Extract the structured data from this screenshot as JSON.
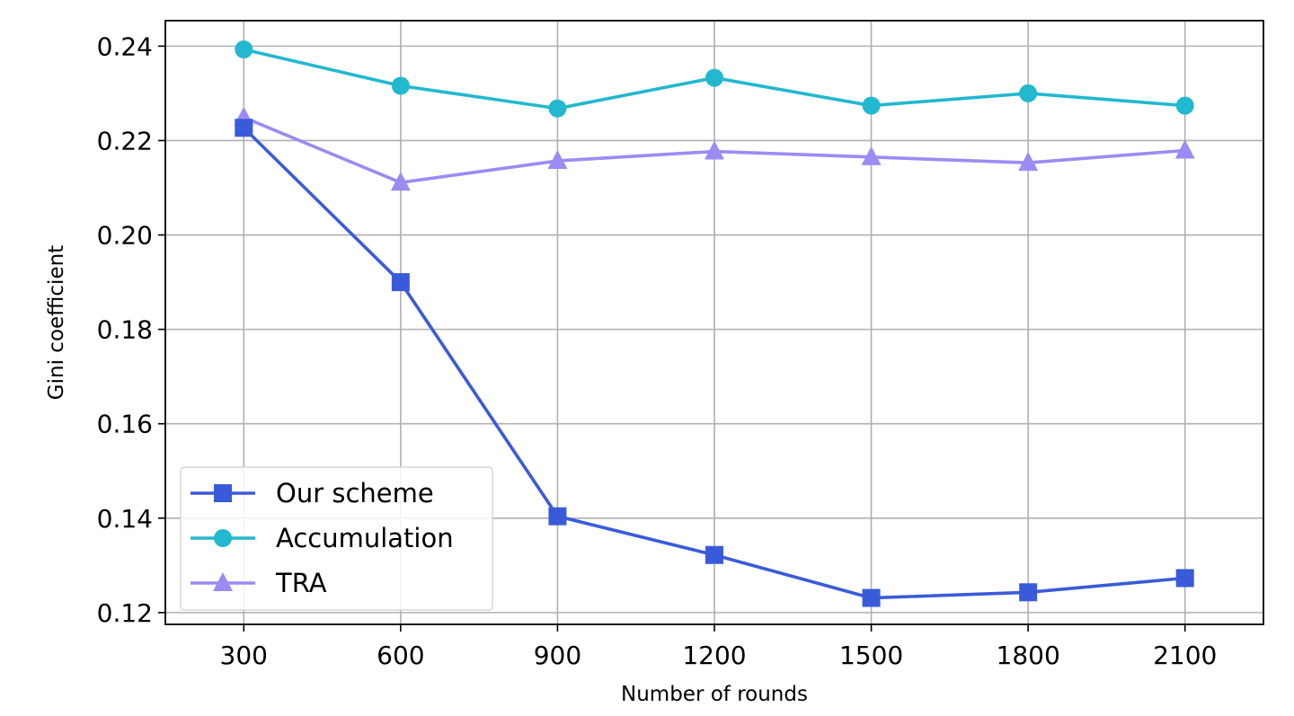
{
  "chart_data": {
    "type": "line",
    "xlabel": "Number of rounds",
    "ylabel": "Gini coefficient",
    "x": [
      300,
      600,
      900,
      1200,
      1500,
      1800,
      2100
    ],
    "x_tick_labels": [
      "300",
      "600",
      "900",
      "1200",
      "1500",
      "1800",
      "2100"
    ],
    "xlim": [
      150,
      2250
    ],
    "ylim": [
      0.1175,
      0.2454
    ],
    "y_ticks": [
      0.12,
      0.14,
      0.16,
      0.18,
      0.2,
      0.22,
      0.24
    ],
    "y_tick_labels": [
      "0.12",
      "0.14",
      "0.16",
      "0.18",
      "0.20",
      "0.22",
      "0.24"
    ],
    "grid": true,
    "legend_position": "lower-left",
    "series": [
      {
        "name": "Our scheme",
        "marker": "square",
        "color": "#3a5bd9",
        "values": [
          0.2227,
          0.19,
          0.1404,
          0.1322,
          0.1231,
          0.1243,
          0.1273
        ]
      },
      {
        "name": "Accumulation",
        "marker": "circle",
        "color": "#22b8cf",
        "values": [
          0.2393,
          0.2316,
          0.2268,
          0.2333,
          0.2274,
          0.23,
          0.2274
        ]
      },
      {
        "name": "TRA",
        "marker": "triangle",
        "color": "#9b8bf4",
        "values": [
          0.2249,
          0.2111,
          0.2157,
          0.2177,
          0.2165,
          0.2153,
          0.2179
        ]
      }
    ]
  }
}
